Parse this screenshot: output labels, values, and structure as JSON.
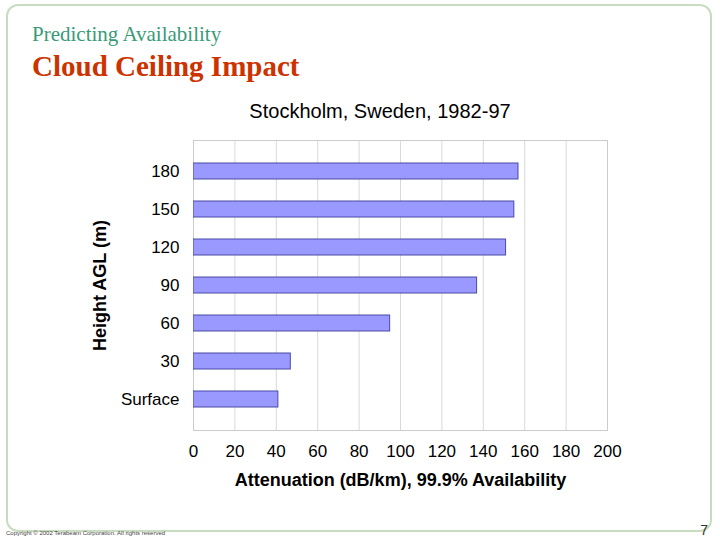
{
  "slide": {
    "header": "Predicting Availability",
    "title": "Cloud Ceiling Impact",
    "footer": "Copyright © 2002 Terabeam Corporation. All rights reserved",
    "page": 7
  },
  "chart_data": {
    "type": "bar",
    "orientation": "horizontal",
    "title": "Stockholm, Sweden, 1982-97",
    "xlabel": "Attenuation (dB/km), 99.9% Availability",
    "ylabel": "Height AGL (m)",
    "categories": [
      "180",
      "150",
      "120",
      "90",
      "60",
      "30",
      "Surface"
    ],
    "values": [
      157,
      155,
      151,
      137,
      95,
      47,
      41
    ],
    "color": "#9999ff",
    "xlim": [
      0,
      200
    ],
    "xticks": [
      0,
      20,
      40,
      60,
      80,
      100,
      120,
      140,
      160,
      180,
      200
    ],
    "grid": true
  }
}
